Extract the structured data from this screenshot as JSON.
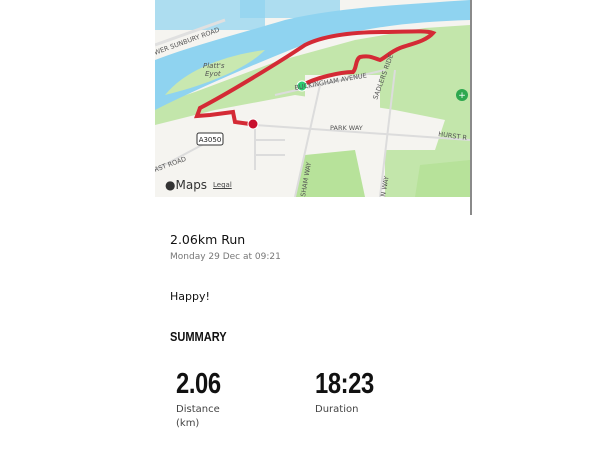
{
  "map": {
    "labels": {
      "lower_sunbury_road": "WER SUNBURY ROAD",
      "platts_eyot": "Platt's",
      "platts_eyot_2": "Eyot",
      "avenue": "BUCKINGHAM AVENUE",
      "ride": "SADLERS RIDE",
      "park_way": "PARK WAY",
      "hurst_road_right": "HURST R",
      "hurst_road_left": "RST ROAD",
      "a_road": "A3050",
      "way1": "SHAM WAY",
      "way2": "N WAY"
    },
    "attribution": "Maps",
    "legal": "Legal",
    "colors": {
      "route": "#d42a35",
      "start": "#2ecc71",
      "end": "#c8102e",
      "water": "#8fd3f0",
      "park": "#b7e29a"
    }
  },
  "activity": {
    "title": "2.06km Run",
    "date": "Monday 29 Dec at 09:21",
    "note": "Happy!"
  },
  "summary": {
    "heading": "SUMMARY",
    "stats": [
      {
        "value": "2.06",
        "label": "Distance (km)"
      },
      {
        "value": "18:23",
        "label": "Duration"
      }
    ]
  }
}
